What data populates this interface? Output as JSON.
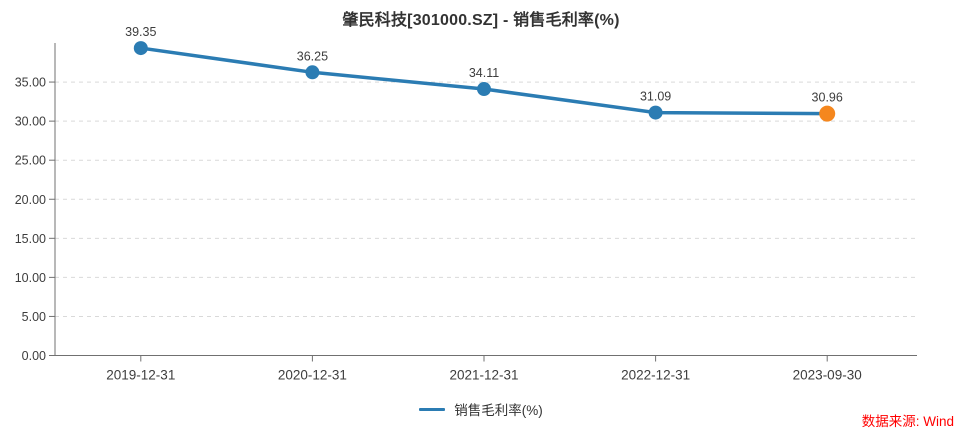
{
  "title": "肇民科技[301000.SZ] - 销售毛利率(%)",
  "legend": {
    "label": "销售毛利率(%)"
  },
  "source": "数据来源: Wind",
  "chart_data": {
    "type": "line",
    "title": "肇民科技[301000.SZ] - 销售毛利率(%)",
    "categories": [
      "2019-12-31",
      "2020-12-31",
      "2021-12-31",
      "2022-12-31",
      "2023-09-30"
    ],
    "series": [
      {
        "name": "销售毛利率(%)",
        "values": [
          39.35,
          36.25,
          34.11,
          31.09,
          30.96
        ]
      }
    ],
    "point_labels": [
      "39.35",
      "36.25",
      "34.11",
      "31.09",
      "30.96"
    ],
    "xlabel": "",
    "ylabel": "",
    "ylim": [
      0,
      40
    ],
    "y_ticks": [
      0,
      5,
      10,
      15,
      20,
      25,
      30,
      35
    ],
    "y_tick_labels": [
      "0.00",
      "5.00",
      "10.00",
      "15.00",
      "20.00",
      "25.00",
      "30.00",
      "35.00"
    ],
    "grid": "dashed-horizontal",
    "legend_position": "bottom-center",
    "colors": {
      "line": "#2b7cb3",
      "point": "#2b7cb3",
      "last_point": "#f5871e",
      "grid": "#d9d9d9",
      "axis": "#707070",
      "tick": "#3d3d3d",
      "label": "#3d3d3d",
      "title": "#333333",
      "source": "#ff0000"
    }
  }
}
